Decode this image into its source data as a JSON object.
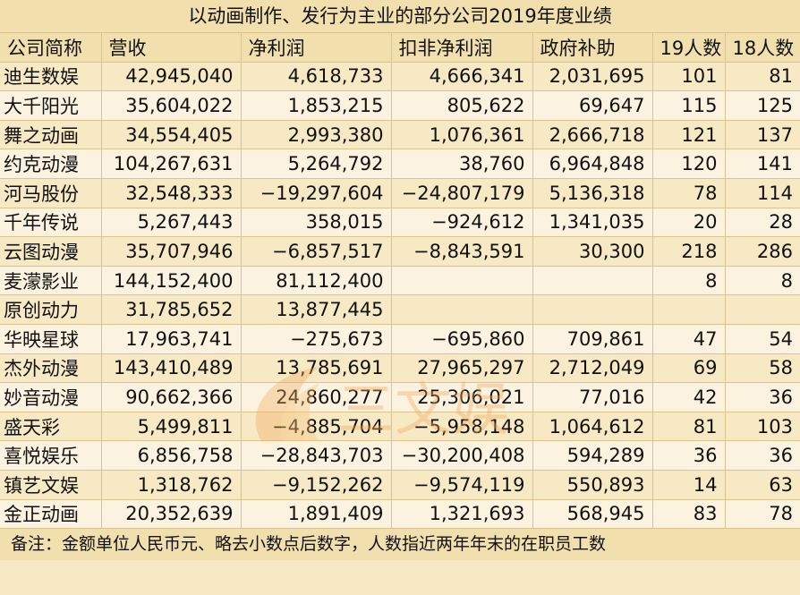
{
  "title": "以动画制作、发行为主业的部分公司2019年度业绩",
  "columns": [
    "公司简称",
    "营收",
    "净利润",
    "扣非净利润",
    "政府补助",
    "19人数",
    "18人数"
  ],
  "rows": [
    [
      "迪生数娱",
      "42,945,040",
      "4,618,733",
      "4,666,341",
      "2,031,695",
      "101",
      "81"
    ],
    [
      "大千阳光",
      "35,604,022",
      "1,853,215",
      "805,622",
      "69,647",
      "115",
      "125"
    ],
    [
      "舞之动画",
      "34,554,405",
      "2,993,380",
      "1,076,361",
      "2,666,718",
      "121",
      "137"
    ],
    [
      "约克动漫",
      "104,267,631",
      "5,264,792",
      "38,760",
      "6,964,848",
      "120",
      "141"
    ],
    [
      "河马股份",
      "32,548,333",
      "−19,297,604",
      "−24,807,179",
      "5,136,318",
      "78",
      "114"
    ],
    [
      "千年传说",
      "5,267,443",
      "358,015",
      "−924,612",
      "1,341,035",
      "20",
      "28"
    ],
    [
      "云图动漫",
      "35,707,946",
      "−6,857,517",
      "−8,843,591",
      "30,300",
      "218",
      "286"
    ],
    [
      "麦濛影业",
      "144,152,400",
      "81,112,400",
      "",
      "",
      "8",
      "8"
    ],
    [
      "原创动力",
      "31,785,652",
      "13,877,445",
      "",
      "",
      "",
      ""
    ],
    [
      "华映星球",
      "17,963,741",
      "−275,673",
      "−695,860",
      "709,861",
      "47",
      "54"
    ],
    [
      "杰外动漫",
      "143,410,489",
      "13,785,691",
      "27,965,297",
      "2,712,049",
      "69",
      "58"
    ],
    [
      "妙音动漫",
      "90,662,366",
      "24,860,277",
      "25,306,021",
      "77,016",
      "42",
      "36"
    ],
    [
      "盛天彩",
      "5,499,811",
      "−4,885,704",
      "−5,958,148",
      "1,064,612",
      "81",
      "103"
    ],
    [
      "喜悦娱乐",
      "6,856,758",
      "−28,843,703",
      "−30,200,408",
      "594,289",
      "36",
      "36"
    ],
    [
      "镇艺文娱",
      "1,318,762",
      "−9,152,262",
      "−9,574,119",
      "550,893",
      "14",
      "63"
    ],
    [
      "金正动画",
      "20,352,639",
      "1,891,409",
      "1,321,693",
      "568,945",
      "83",
      "78"
    ]
  ],
  "note": "备注：金额单位人民币元、略去小数点后数字，人数指近两年年末的在职员工数",
  "watermark_text": "三文娱",
  "colors": {
    "background": "#f7e9c4",
    "header": "#f2dfae",
    "row_alt": "#fbf3df",
    "grid": "#d9c48f",
    "watermark": "#f0a85a"
  }
}
